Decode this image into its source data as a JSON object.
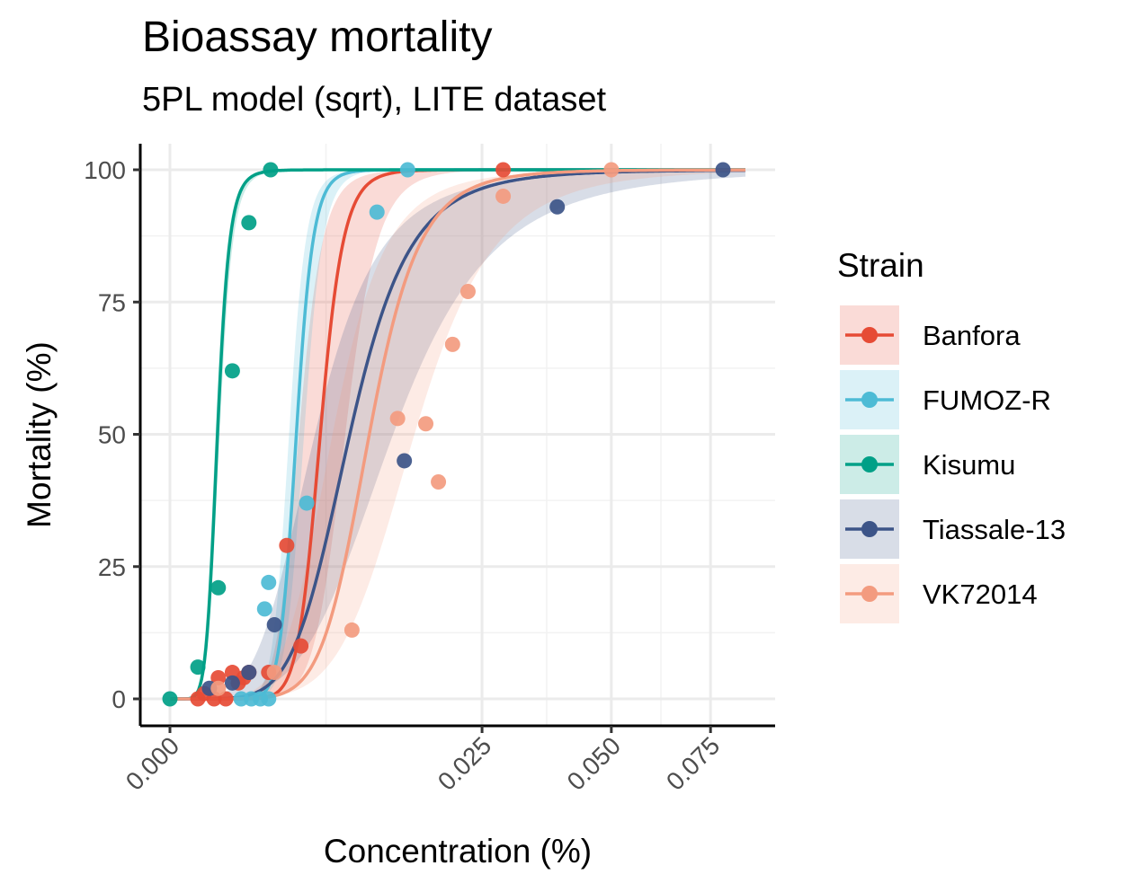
{
  "chart_data": {
    "type": "line",
    "title": "Bioassay mortality",
    "subtitle": "5PL model (sqrt), LITE dataset",
    "xlabel": "Concentration (%)",
    "ylabel": "Mortality (%)",
    "x_scale": "sqrt",
    "xlim": [
      0,
      0.085
    ],
    "ylim": [
      0,
      100
    ],
    "x_ticks": [
      0,
      0.025,
      0.05,
      0.075
    ],
    "x_tick_labels": [
      "0.000",
      "0.025",
      "0.050",
      "0.075"
    ],
    "y_ticks": [
      0,
      25,
      50,
      75,
      100
    ],
    "y_tick_labels": [
      "0",
      "25",
      "50",
      "75",
      "100"
    ],
    "grid": true,
    "legend_title": "Strain",
    "legend_position": "right",
    "series": [
      {
        "name": "Banfora",
        "color": "#e64b35",
        "curve": {
          "ec50": 0.0058,
          "slope": 6.5,
          "band_width": 2.0
        },
        "points": [
          [
            0.0002,
            0
          ],
          [
            0.0003,
            1
          ],
          [
            0.0005,
            0
          ],
          [
            0.0006,
            4
          ],
          [
            0.0008,
            0
          ],
          [
            0.001,
            5
          ],
          [
            0.0012,
            3
          ],
          [
            0.0014,
            4
          ],
          [
            0.0016,
            5
          ],
          [
            0.0025,
            5
          ],
          [
            0.0035,
            29
          ],
          [
            0.0044,
            10
          ],
          [
            0.0285,
            100
          ]
        ]
      },
      {
        "name": "FUMOZ-R",
        "color": "#4dbbd5",
        "curve": {
          "ec50": 0.0041,
          "slope": 7.5,
          "band_width": 0.7
        },
        "points": [
          [
            0.0013,
            0
          ],
          [
            0.0017,
            0
          ],
          [
            0.0021,
            0
          ],
          [
            0.0025,
            0
          ],
          [
            0.0023,
            17
          ],
          [
            0.0025,
            22
          ],
          [
            0.0048,
            37
          ],
          [
            0.011,
            92
          ],
          [
            0.0145,
            100
          ]
        ]
      },
      {
        "name": "Kisumu",
        "color": "#00a087",
        "curve": {
          "ec50": 0.00058,
          "slope": 4.0,
          "band_width": 0.5
        },
        "points": [
          [
            0,
            0
          ],
          [
            0.0002,
            6
          ],
          [
            0.0006,
            21
          ],
          [
            0.001,
            62
          ],
          [
            0.0016,
            90
          ],
          [
            0.0026,
            100
          ]
        ]
      },
      {
        "name": "Tiassale-13",
        "color": "#3c5488",
        "curve": {
          "ec50": 0.0083,
          "slope": 3.0,
          "band_width": 3.0
        },
        "points": [
          [
            0.0004,
            2
          ],
          [
            0.001,
            3
          ],
          [
            0.0016,
            5
          ],
          [
            0.0028,
            14
          ],
          [
            0.0141,
            45
          ],
          [
            0.0385,
            93
          ],
          [
            0.0785,
            100
          ]
        ]
      },
      {
        "name": "VK72014",
        "color": "#f39b7f",
        "curve": {
          "ec50": 0.0102,
          "slope": 4.0,
          "band_width": 2.8
        },
        "points": [
          [
            0.0006,
            2
          ],
          [
            0.0028,
            5
          ],
          [
            0.0085,
            13
          ],
          [
            0.0133,
            53
          ],
          [
            0.0168,
            52
          ],
          [
            0.0205,
            67
          ],
          [
            0.0185,
            41
          ],
          [
            0.0228,
            77
          ],
          [
            0.0285,
            95
          ],
          [
            0.05,
            100
          ]
        ]
      }
    ]
  }
}
